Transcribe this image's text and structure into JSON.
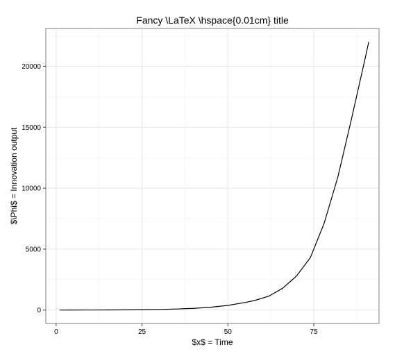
{
  "chart_data": {
    "type": "line",
    "title": "Fancy \\LaTeX  \\hspace{0.01cm} title",
    "xlabel": "$x$ = Time",
    "ylabel": "$\\Phi$ = Innovation output",
    "xlim": [
      -3,
      94
    ],
    "ylim": [
      -1100,
      23100
    ],
    "x_ticks": [
      0,
      25,
      50,
      75
    ],
    "y_ticks": [
      0,
      5000,
      10000,
      15000,
      20000
    ],
    "x_tick_labels": [
      "0",
      "25",
      "50",
      "75"
    ],
    "y_tick_labels": [
      "0",
      "5000",
      "10000",
      "15000",
      "20000"
    ],
    "x_minor_ticks": [
      12.5,
      37.5,
      62.5,
      87.5
    ],
    "y_minor_ticks": [
      2500,
      7500,
      12500,
      17500,
      22500
    ],
    "grid": true,
    "series": [
      {
        "color": "#000000",
        "x": [
          1,
          5,
          10,
          15,
          20,
          25,
          30,
          35,
          40,
          45,
          50,
          55,
          58,
          62,
          66,
          70,
          74,
          78,
          82,
          86,
          88,
          90,
          91
        ],
        "y": [
          0,
          3,
          6,
          10,
          18,
          30,
          50,
          85,
          140,
          230,
          380,
          620,
          800,
          1150,
          1800,
          2800,
          4300,
          7100,
          10900,
          15700,
          18200,
          20700,
          22000
        ]
      }
    ]
  }
}
